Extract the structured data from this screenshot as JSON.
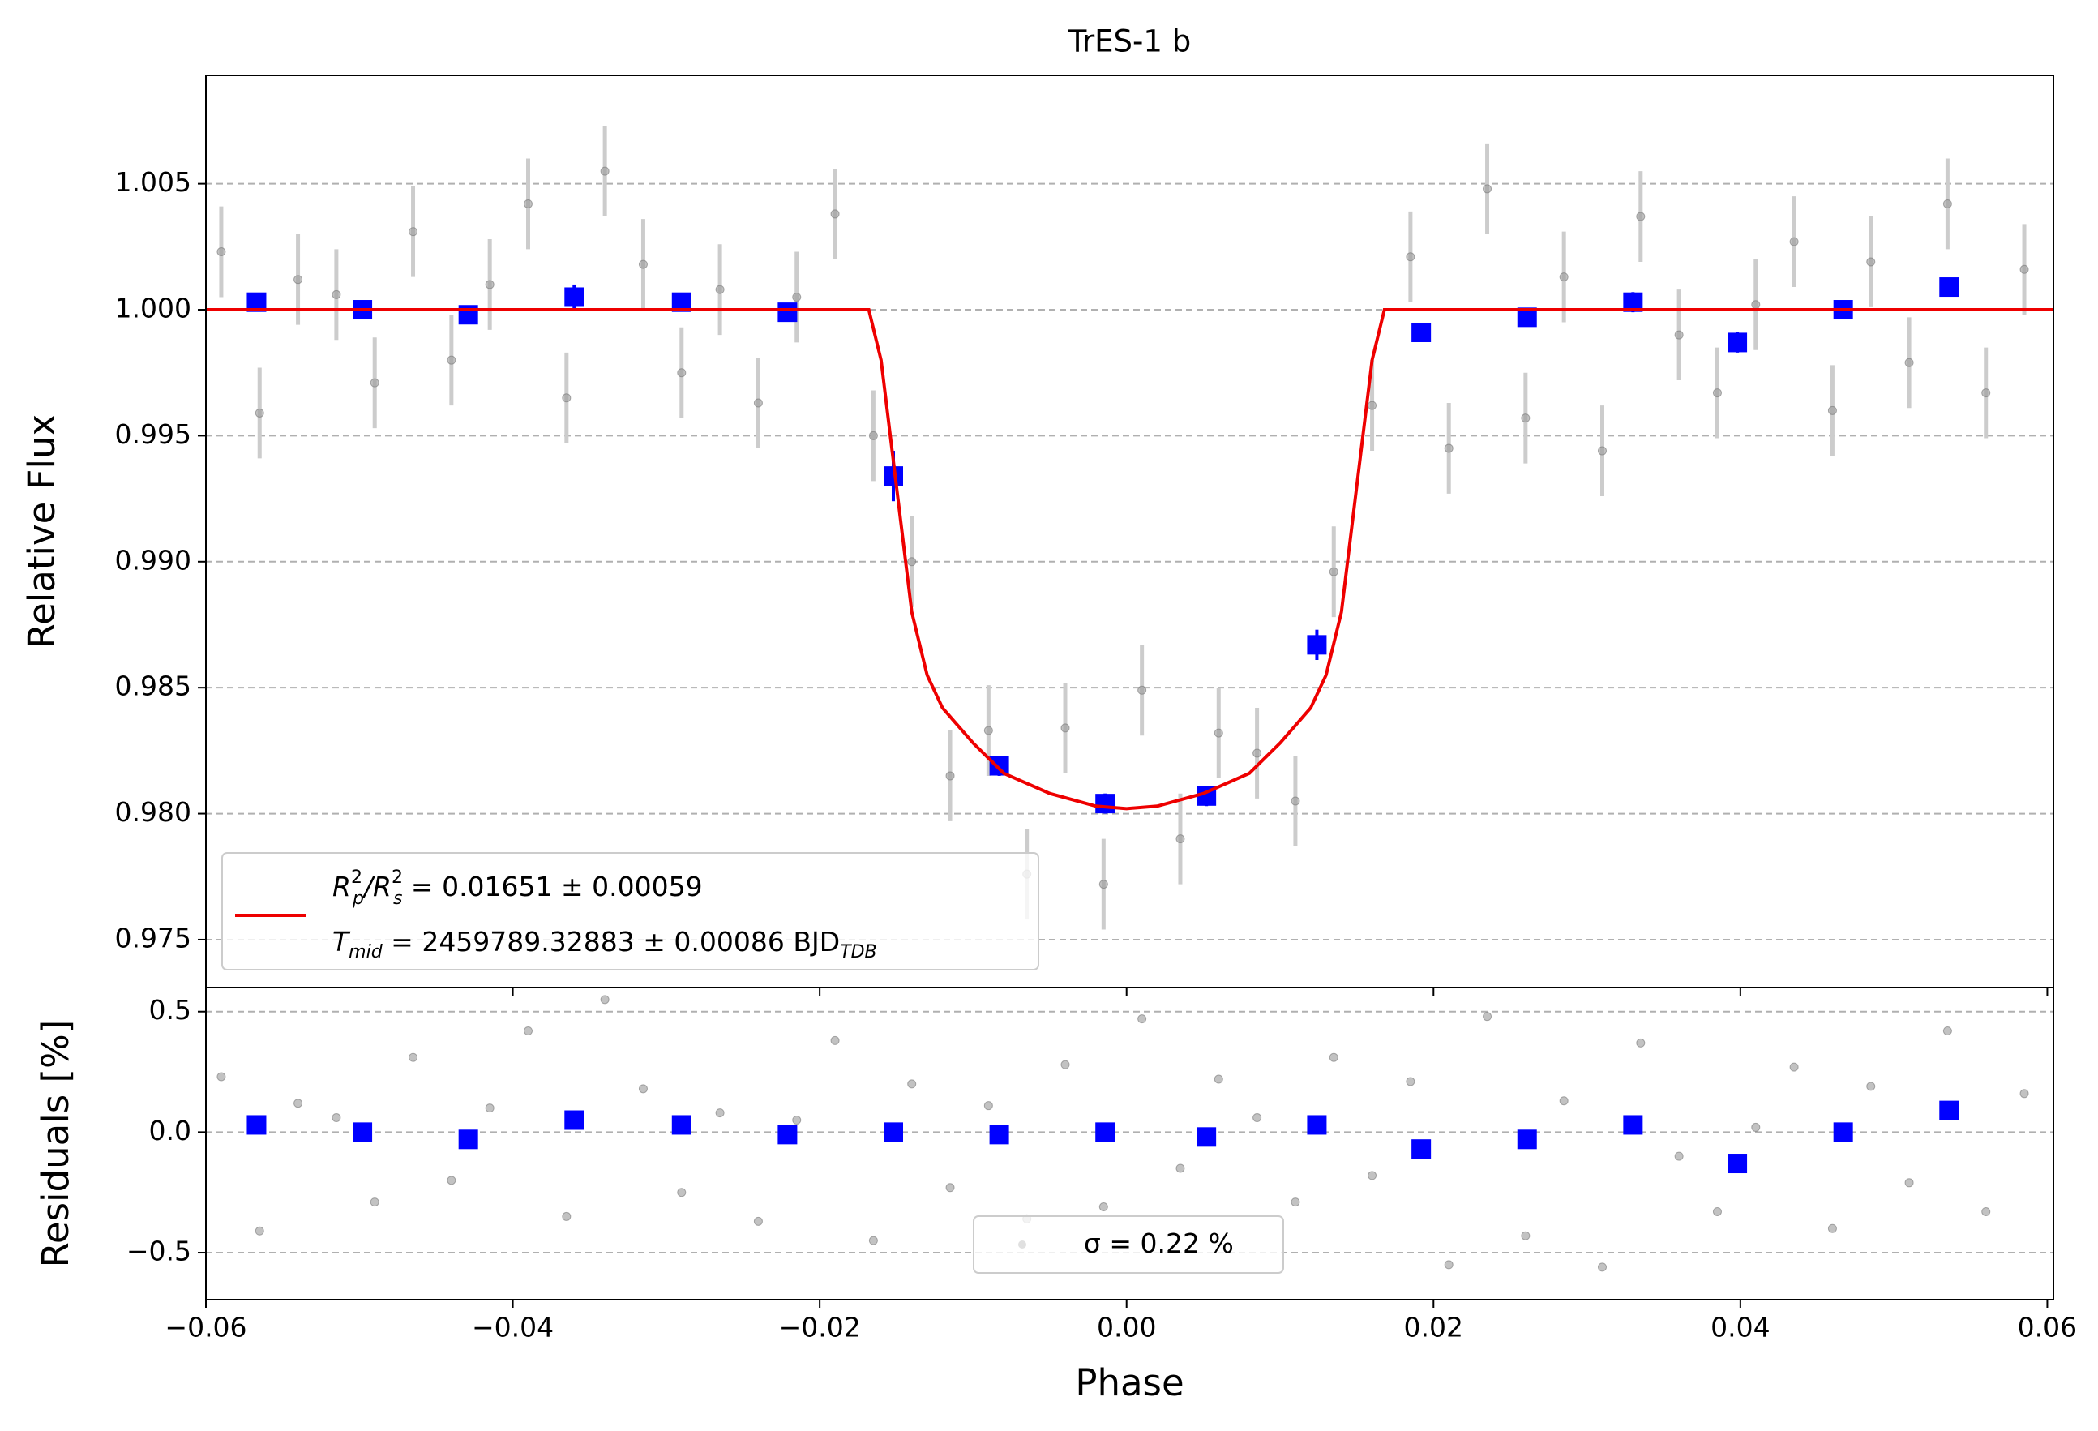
{
  "chart_data": [
    {
      "type": "scatter",
      "title": "TrES-1 b",
      "ylabel": "Relative Flux",
      "xlim": [
        -0.06,
        0.0604
      ],
      "ylim": [
        0.9731,
        1.0093
      ],
      "yticks": [
        0.975,
        {
          "value": 0.98,
          "label": "0.980"
        },
        0.985,
        {
          "value": 0.99,
          "label": "0.990"
        },
        0.995,
        {
          "value": 1.0,
          "label": "1.000"
        },
        1.005
      ],
      "grid": true,
      "legend": {
        "corner": "lower left",
        "lines": [
          [
            {
              "text": "R",
              "sub": "p",
              "sup": "2"
            },
            {
              "text": "/R",
              "sub": "s",
              "sup": "2"
            },
            {
              "text": " = 0.01651 ± 0.00059"
            }
          ],
          [
            {
              "text": "T",
              "sub": "mid"
            },
            {
              "text": " = 2459789.32883 ± 0.00086 BJD",
              "sub": "TDB"
            }
          ]
        ]
      },
      "series": [
        {
          "marker": "circle",
          "color": "#999999",
          "errcolor": "#cccccc",
          "yerr": 0.0018,
          "x": [
            -0.059,
            -0.0565,
            -0.054,
            -0.0515,
            -0.049,
            -0.0465,
            -0.044,
            -0.0415,
            -0.039,
            -0.0365,
            -0.034,
            -0.0315,
            -0.029,
            -0.0265,
            -0.024,
            -0.0215,
            -0.019,
            -0.0165,
            -0.014,
            -0.0115,
            -0.009,
            -0.0065,
            -0.004,
            -0.0015,
            0.001,
            0.0035,
            0.006,
            0.0085,
            0.011,
            0.0135,
            0.016,
            0.0185,
            0.021,
            0.0235,
            0.026,
            0.0285,
            0.031,
            0.0335,
            0.036,
            0.0385,
            0.041,
            0.0435,
            0.046,
            0.0485,
            0.051,
            0.0535,
            0.056,
            0.0585
          ],
          "values": [
            1.0023,
            0.9959,
            1.0012,
            1.0006,
            0.9971,
            1.0031,
            0.998,
            1.001,
            1.0042,
            0.9965,
            1.0055,
            1.0018,
            0.9975,
            1.0008,
            0.9963,
            1.0005,
            1.0038,
            0.995,
            0.99,
            0.9815,
            0.9833,
            0.9776,
            0.9834,
            0.9772,
            0.9849,
            0.979,
            0.9832,
            0.9824,
            0.9805,
            0.9896,
            0.9962,
            1.0021,
            0.9945,
            1.0048,
            0.9957,
            1.0013,
            0.9944,
            1.0037,
            0.999,
            0.9967,
            1.0002,
            1.0027,
            0.996,
            1.0019,
            0.9979,
            1.0042,
            0.9967,
            1.0016
          ]
        },
        {
          "marker": "square",
          "color": "#0000ff",
          "x": [
            -0.0567,
            -0.0498,
            -0.0429,
            -0.036,
            -0.029,
            -0.0221,
            -0.0152,
            -0.0083,
            -0.0014,
            0.0052,
            0.0124,
            0.0192,
            0.0261,
            0.033,
            0.0398,
            0.0467,
            0.0536
          ],
          "values": [
            1.0003,
            1.0,
            0.9998,
            1.0005,
            1.0003,
            0.9999,
            0.9934,
            0.9819,
            0.9804,
            0.9807,
            0.9867,
            0.9991,
            0.9997,
            1.0003,
            0.9987,
            1.0,
            1.0009
          ],
          "errors": [
            0.0003,
            0.0003,
            0.0003,
            0.0005,
            0.0003,
            0.0003,
            0.001,
            0.0004,
            0.0004,
            0.0004,
            0.0006,
            0.0003,
            0.0003,
            0.0004,
            0.0004,
            0.0003,
            0.0003
          ]
        },
        {
          "marker": "line",
          "color": "#ee0000",
          "x": [
            -0.06,
            -0.0168,
            -0.016,
            -0.015,
            -0.014,
            -0.013,
            -0.012,
            -0.01,
            -0.008,
            -0.005,
            -0.002,
            0,
            0.002,
            0.005,
            0.008,
            0.01,
            0.012,
            0.013,
            0.014,
            0.015,
            0.016,
            0.0168,
            0.0604
          ],
          "values": [
            1.0,
            1.0,
            0.998,
            0.993,
            0.988,
            0.9855,
            0.9842,
            0.9828,
            0.9816,
            0.9808,
            0.9803,
            0.9802,
            0.9803,
            0.9808,
            0.9816,
            0.9828,
            0.9842,
            0.9855,
            0.988,
            0.993,
            0.998,
            1.0,
            1.0
          ]
        }
      ]
    },
    {
      "type": "scatter",
      "xlabel": "Phase",
      "ylabel": "Residuals [%]",
      "xlim": [
        -0.06,
        0.0604
      ],
      "ylim": [
        -0.695,
        0.6
      ],
      "xticks": [
        {
          "value": -0.06,
          "label": "−0.06"
        },
        {
          "value": -0.04,
          "label": "−0.04"
        },
        {
          "value": -0.02,
          "label": "−0.02"
        },
        {
          "value": 0,
          "label": "0.00"
        },
        0.02,
        0.04,
        0.06
      ],
      "yticks": [
        {
          "value": -0.5,
          "label": "−0.5"
        },
        {
          "value": 0,
          "label": "0.0"
        },
        0.5
      ],
      "grid": true,
      "legend": {
        "corner": "lower center",
        "lines": [
          [
            {
              "text": "σ = 0.22 %"
            }
          ]
        ]
      },
      "series": [
        {
          "marker": "circle",
          "color": "#999999",
          "x": [
            -0.059,
            -0.0565,
            -0.054,
            -0.0515,
            -0.049,
            -0.0465,
            -0.044,
            -0.0415,
            -0.039,
            -0.0365,
            -0.034,
            -0.0315,
            -0.029,
            -0.0265,
            -0.024,
            -0.0215,
            -0.019,
            -0.0165,
            -0.014,
            -0.0115,
            -0.009,
            -0.0065,
            -0.004,
            -0.0015,
            0.001,
            0.0035,
            0.006,
            0.0085,
            0.011,
            0.0135,
            0.016,
            0.0185,
            0.021,
            0.0235,
            0.026,
            0.0285,
            0.031,
            0.0335,
            0.036,
            0.0385,
            0.041,
            0.0435,
            0.046,
            0.0485,
            0.051,
            0.0535,
            0.056,
            0.0585
          ],
          "values": [
            0.23,
            -0.41,
            0.12,
            0.06,
            -0.29,
            0.31,
            -0.2,
            0.1,
            0.42,
            -0.35,
            0.55,
            0.18,
            -0.25,
            0.08,
            -0.37,
            0.05,
            0.38,
            -0.45,
            0.2,
            -0.23,
            0.11,
            -0.36,
            0.28,
            -0.31,
            0.47,
            -0.15,
            0.22,
            0.06,
            -0.29,
            0.31,
            -0.18,
            0.21,
            -0.55,
            0.48,
            -0.43,
            0.13,
            -0.56,
            0.37,
            -0.1,
            -0.33,
            0.02,
            0.27,
            -0.4,
            0.19,
            -0.21,
            0.42,
            -0.33,
            0.16
          ]
        },
        {
          "marker": "square",
          "color": "#0000ff",
          "x": [
            -0.0567,
            -0.0498,
            -0.0429,
            -0.036,
            -0.029,
            -0.0221,
            -0.0152,
            -0.0083,
            -0.0014,
            0.0052,
            0.0124,
            0.0192,
            0.0261,
            0.033,
            0.0398,
            0.0467,
            0.0536
          ],
          "values": [
            0.03,
            0.0,
            -0.03,
            0.05,
            0.03,
            -0.01,
            0.0,
            -0.01,
            0.0,
            -0.02,
            0.03,
            -0.07,
            -0.03,
            0.03,
            -0.13,
            0.0,
            0.09
          ]
        }
      ]
    }
  ]
}
